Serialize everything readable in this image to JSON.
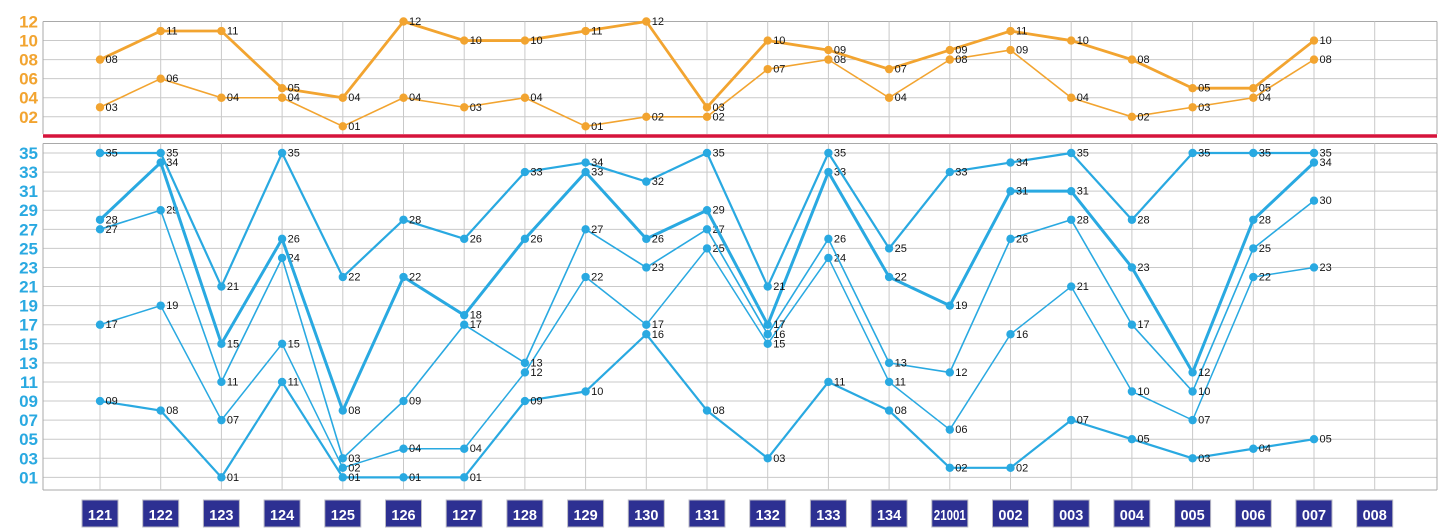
{
  "chart_data": {
    "type": "line",
    "description_visible_text_only": true,
    "x_labels": [
      "121",
      "122",
      "123",
      "124",
      "125",
      "126",
      "127",
      "128",
      "129",
      "130",
      "131",
      "132",
      "133",
      "134",
      "21001",
      "002",
      "003",
      "004",
      "005",
      "006",
      "007",
      "008"
    ],
    "back_zone": {
      "axis_ticks": [
        "12",
        "10",
        "08",
        "06",
        "04",
        "02"
      ],
      "ylim": [
        1,
        12
      ],
      "grid": true,
      "series": [
        {
          "name": "back-ball-min",
          "values": [
            3,
            6,
            4,
            4,
            1,
            4,
            3,
            4,
            1,
            2,
            2,
            7,
            8,
            4,
            8,
            9,
            4,
            2,
            3,
            4,
            8,
            null
          ]
        },
        {
          "name": "back-ball-max",
          "values": [
            8,
            11,
            11,
            5,
            4,
            12,
            10,
            10,
            11,
            12,
            3,
            10,
            9,
            7,
            9,
            11,
            10,
            8,
            5,
            5,
            10,
            null
          ]
        }
      ]
    },
    "front_zone": {
      "axis_ticks": [
        "35",
        "33",
        "31",
        "29",
        "27",
        "25",
        "23",
        "21",
        "19",
        "17",
        "15",
        "13",
        "11",
        "09",
        "07",
        "05",
        "03",
        "01"
      ],
      "ylim": [
        1,
        35
      ],
      "grid": true,
      "series": [
        {
          "name": "front-ball-1",
          "values": [
            9,
            8,
            1,
            11,
            1,
            1,
            1,
            9,
            10,
            16,
            8,
            3,
            11,
            8,
            2,
            2,
            7,
            5,
            3,
            4,
            5,
            null
          ]
        },
        {
          "name": "front-ball-2",
          "values": [
            17,
            19,
            7,
            15,
            2,
            4,
            4,
            12,
            22,
            17,
            25,
            15,
            24,
            11,
            6,
            16,
            21,
            10,
            7,
            22,
            23,
            null
          ]
        },
        {
          "name": "front-ball-3",
          "values": [
            27,
            29,
            11,
            24,
            3,
            9,
            17,
            13,
            27,
            23,
            27,
            16,
            26,
            13,
            12,
            26,
            28,
            17,
            10,
            25,
            30,
            null
          ]
        },
        {
          "name": "front-ball-4",
          "values": [
            28,
            34,
            15,
            26,
            8,
            22,
            18,
            26,
            33,
            26,
            29,
            17,
            33,
            22,
            19,
            31,
            31,
            23,
            12,
            28,
            34,
            null
          ]
        },
        {
          "name": "front-ball-5",
          "values": [
            35,
            35,
            21,
            35,
            22,
            28,
            26,
            33,
            34,
            32,
            35,
            21,
            35,
            25,
            33,
            34,
            35,
            28,
            35,
            35,
            35,
            null
          ]
        }
      ]
    },
    "colors": {
      "back_zone_accent": "#F2A430",
      "front_zone_accent": "#29A9E1",
      "zone_separator": "#D6143C",
      "draw_badge_background": "#2D3092",
      "draw_badge_text": "#FFFFFF",
      "point_label_text": "#141414",
      "gridline": "#c9c9c9",
      "plot_border": "#a9a9a9"
    }
  }
}
